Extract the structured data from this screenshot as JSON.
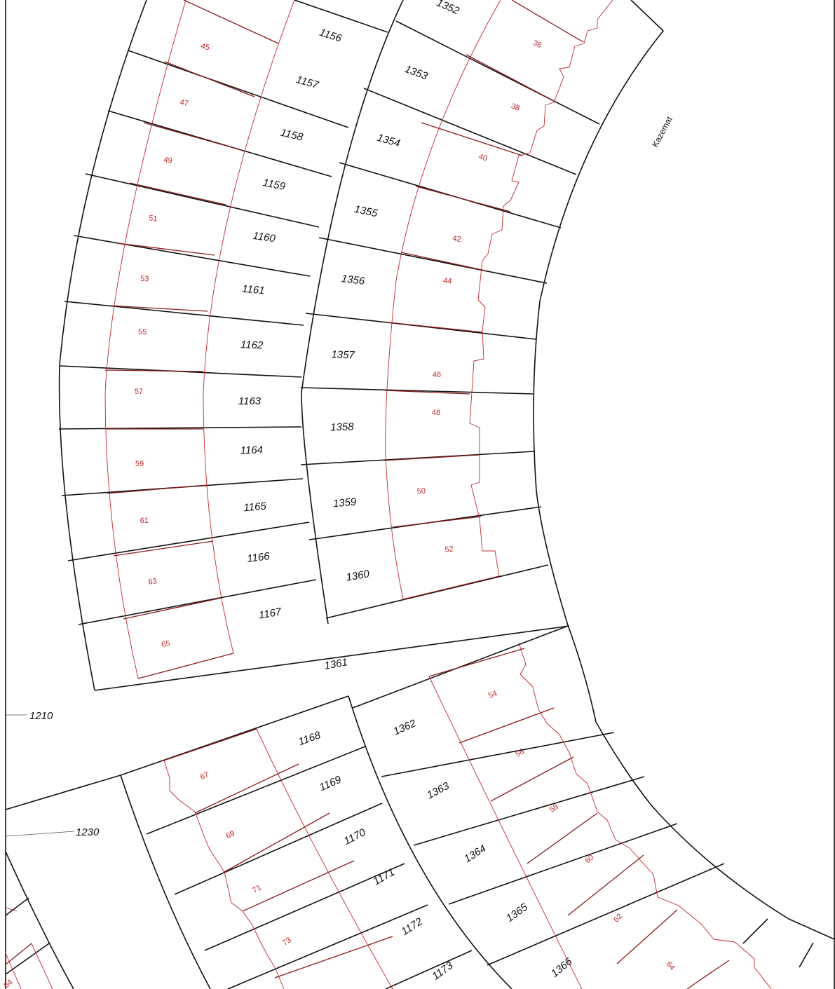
{
  "map": {
    "area_label": "Kazemat",
    "colors": {
      "parcel_line": "#111111",
      "sub_parcel_line": "#c0272d",
      "background": "#ffffff"
    },
    "leader_labels": [
      "1210",
      "1230"
    ],
    "parcel_labels_outer": [
      "1156",
      "1157",
      "1158",
      "1159",
      "1160",
      "1161",
      "1162",
      "1163",
      "1164",
      "1165",
      "1166",
      "1167"
    ],
    "parcel_labels_middle": [
      "1352",
      "1353",
      "1354",
      "1355",
      "1356",
      "1357",
      "1358",
      "1359",
      "1360",
      "1361"
    ],
    "parcel_labels_lower": [
      "1168",
      "1169",
      "1170",
      "1171",
      "1172",
      "1173"
    ],
    "parcel_labels_lower_inner": [
      "1362",
      "1363",
      "1364",
      "1365",
      "1366"
    ],
    "sub_labels_left": [
      "45",
      "47",
      "49",
      "51",
      "53",
      "55",
      "57",
      "59",
      "61",
      "63",
      "65"
    ],
    "sub_labels_right": [
      "36",
      "38",
      "40",
      "42",
      "44",
      "46",
      "48",
      "50",
      "52"
    ],
    "sub_labels_lower_left": [
      "67",
      "69",
      "71",
      "73"
    ],
    "sub_labels_lower_right": [
      "54",
      "56",
      "58",
      "60",
      "62",
      "64"
    ],
    "partial_labels": [
      "64"
    ]
  }
}
